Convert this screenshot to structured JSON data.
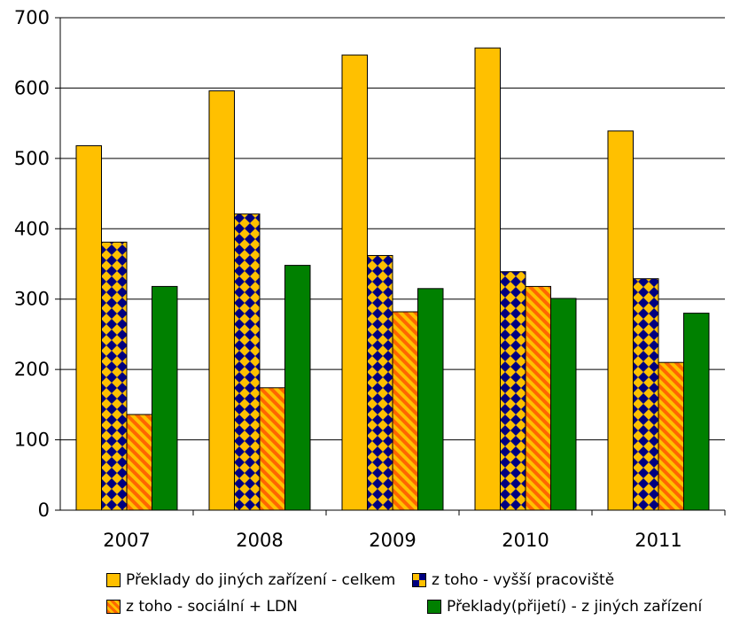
{
  "chart_data": {
    "type": "bar",
    "title": "",
    "xlabel": "",
    "ylabel": "",
    "ylim": [
      0,
      700
    ],
    "yticks": [
      0,
      100,
      200,
      300,
      400,
      500,
      600,
      700
    ],
    "grid": true,
    "legend_placement": "bottom",
    "categories": [
      "2007",
      "2008",
      "2009",
      "2010",
      "2011"
    ],
    "series": [
      {
        "name": "Překlady do jiných zařízení -  celkem",
        "values": [
          518,
          596,
          647,
          657,
          539
        ],
        "color": "#FFC000",
        "pattern": "solid"
      },
      {
        "name": "z toho - vyšší pracoviště",
        "values": [
          381,
          421,
          362,
          339,
          329
        ],
        "color": "#FFC000",
        "color2": "#000080",
        "pattern": "diamond-checker"
      },
      {
        "name": "z toho - sociální + LDN",
        "values": [
          136,
          174,
          282,
          318,
          210
        ],
        "color": "#FF6600",
        "color2": "#FFC000",
        "pattern": "diagonal-stripes"
      },
      {
        "name": "Překlady(přijetí) - z jiných zařízení",
        "values": [
          318,
          348,
          315,
          301,
          280
        ],
        "color": "#008000",
        "pattern": "solid"
      }
    ]
  }
}
